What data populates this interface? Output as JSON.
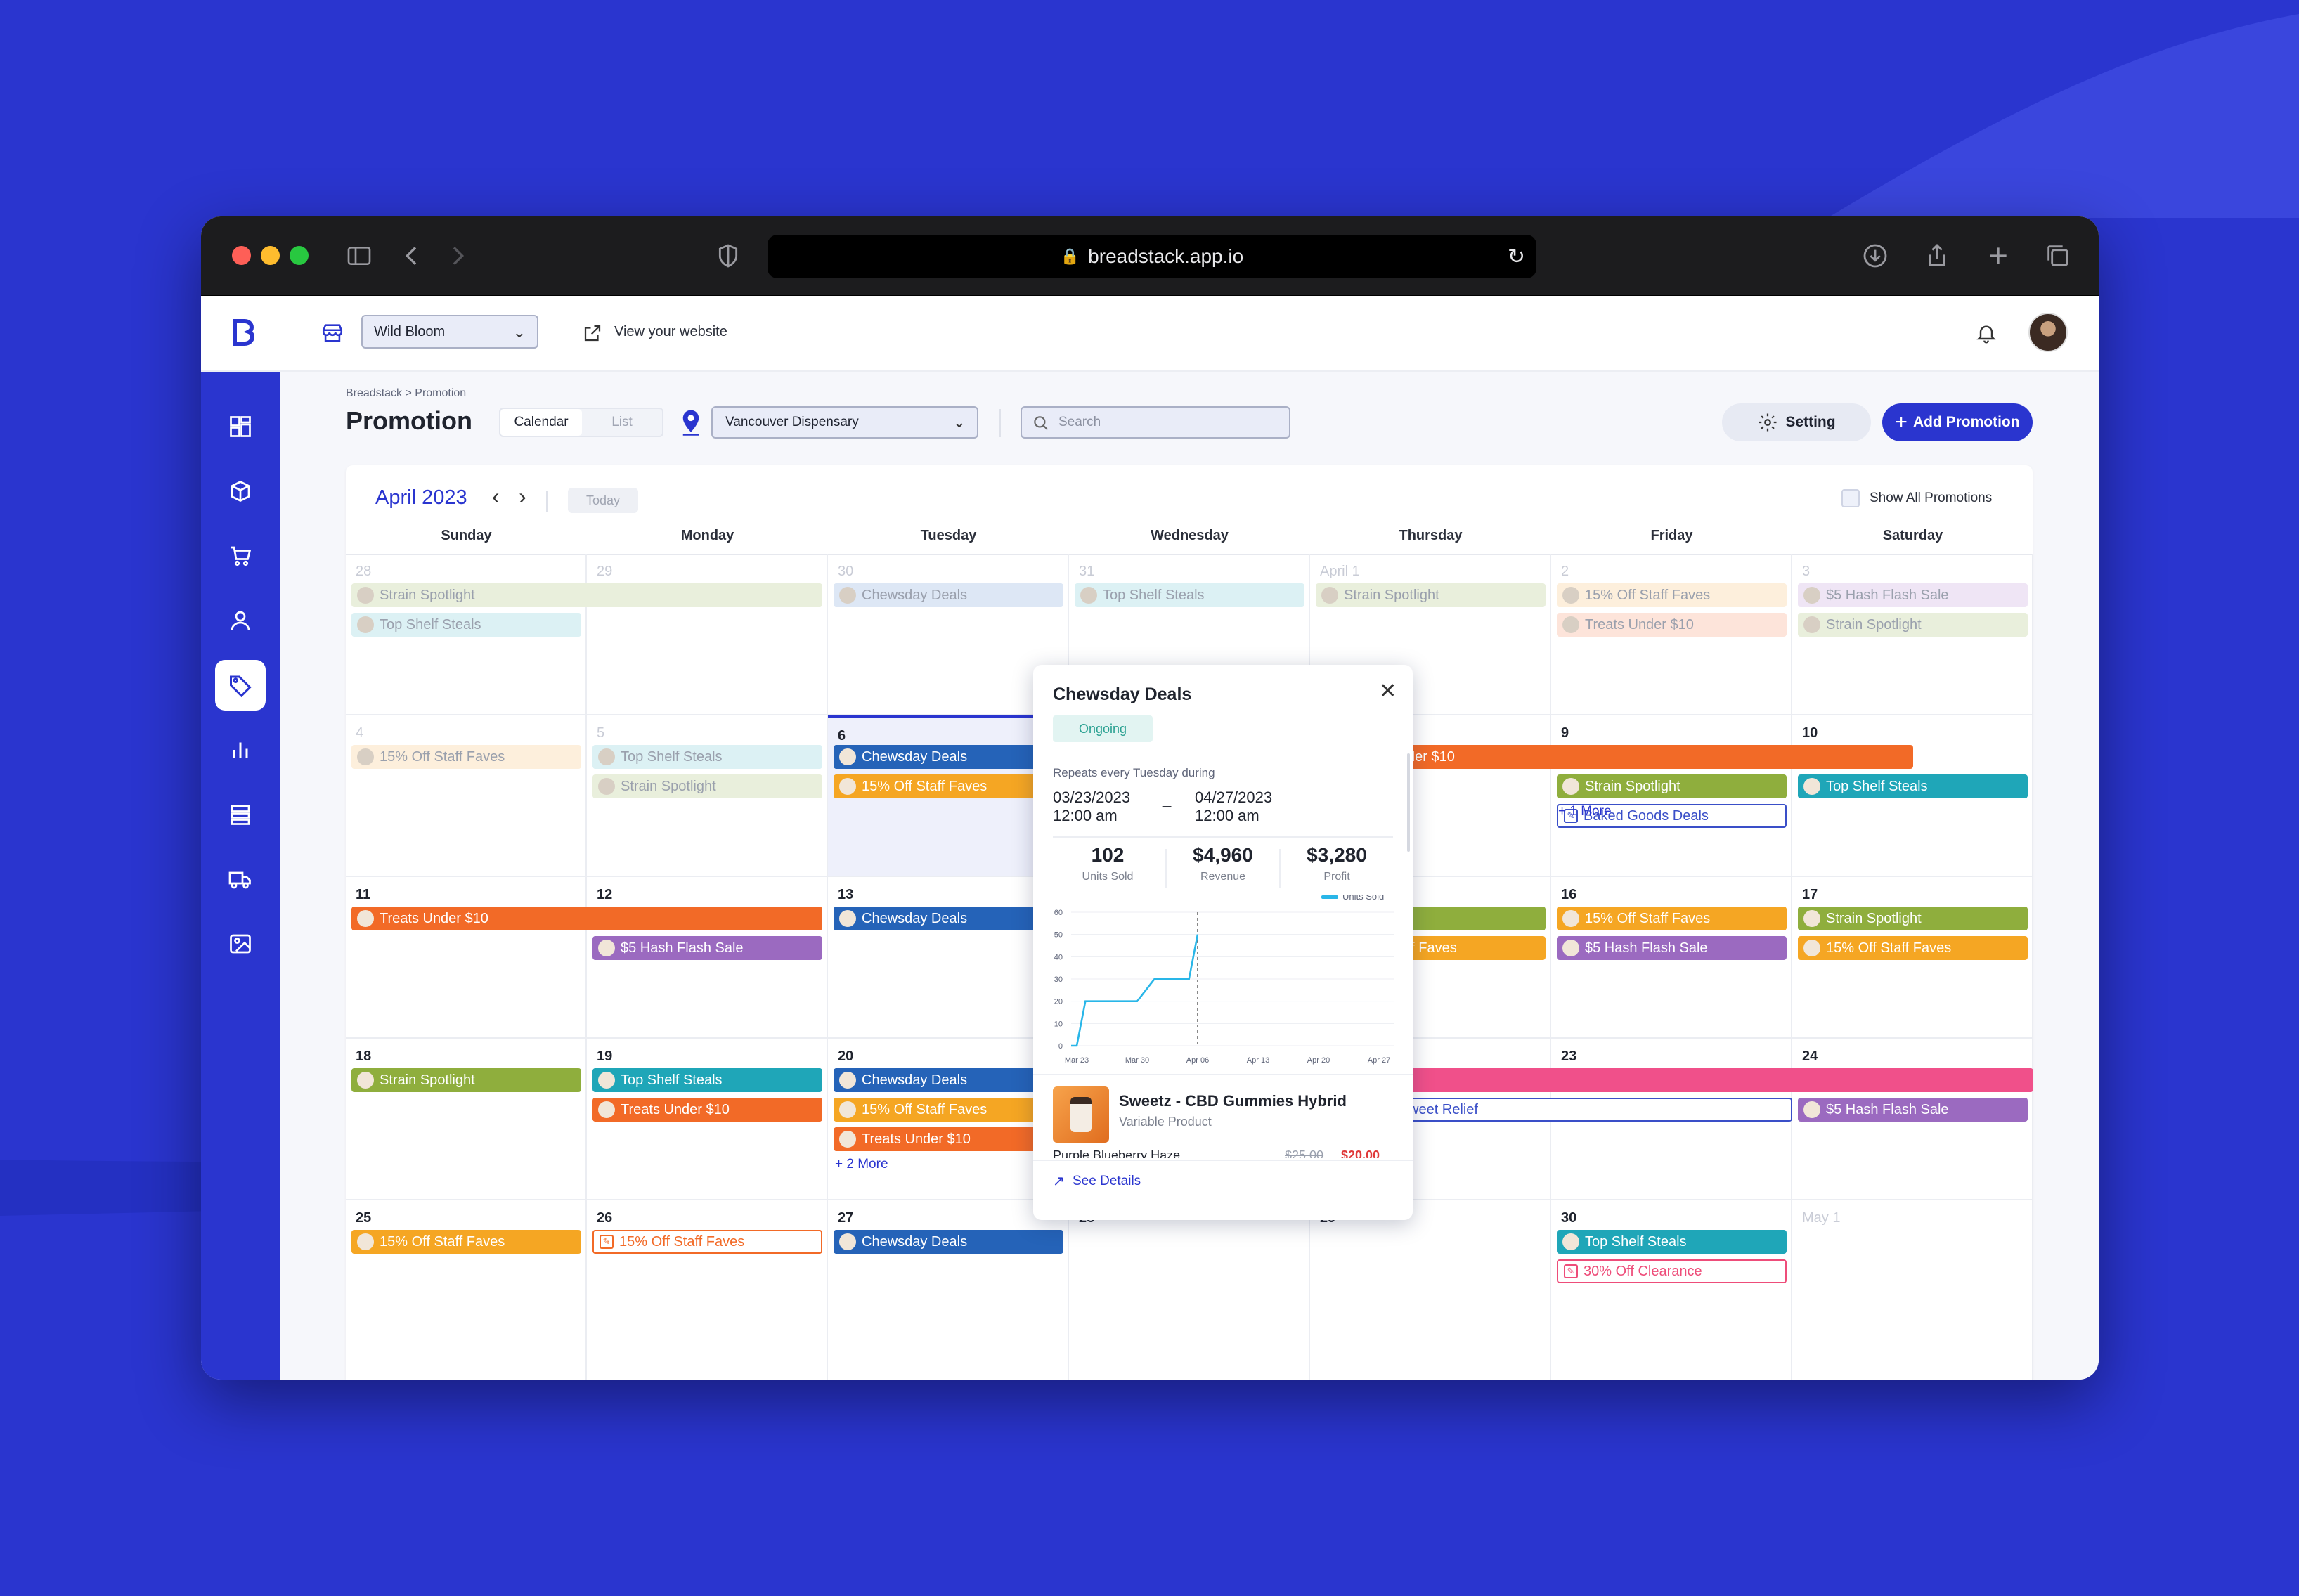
{
  "browser": {
    "url": "breadstack.app.io"
  },
  "header": {
    "store": "Wild Bloom",
    "view_site": "View your website"
  },
  "page": {
    "breadcrumb": "Breadstack > Promotion",
    "title": "Promotion",
    "view_tabs": [
      "Calendar",
      "List"
    ],
    "location": "Vancouver Dispensary",
    "search_placeholder": "Search",
    "setting": "Setting",
    "add_promotion": "Add Promotion"
  },
  "calendar": {
    "month": "April 2023",
    "today": "Today",
    "show_all": "Show All Promotions",
    "weekdays": [
      "Sunday",
      "Monday",
      "Tuesday",
      "Wednesday",
      "Thursday",
      "Friday",
      "Saturday"
    ],
    "days": [
      [
        "28",
        "29",
        "30",
        "31",
        "April 1",
        "2",
        "3"
      ],
      [
        "4",
        "5",
        "6",
        "",
        "",
        "9",
        "10"
      ],
      [
        "11",
        "12",
        "13",
        "",
        "",
        "16",
        "17"
      ],
      [
        "18",
        "19",
        "20",
        "",
        "",
        "23",
        "24"
      ],
      [
        "25",
        "26",
        "27",
        "28",
        "29",
        "30",
        "May 1"
      ]
    ],
    "events": {
      "strain": "Strain Spotlight",
      "topshelf": "Top Shelf Steals",
      "chewsday": "Chewsday Deals",
      "staff": "15% Off Staff Faves",
      "treats": "Treats Under $10",
      "hash": "$5 Hash Flash Sale",
      "baked": "Baked Goods Deals",
      "treats_partial": "der $10",
      "faves_partial": "ff Faves",
      "relief_partial": "weet Relief",
      "clearance": "30% Off Clearance"
    },
    "more_1": "+ 1 More",
    "more_2": "+ 2 More"
  },
  "popup": {
    "title": "Chewsday Deals",
    "status": "Ongoing",
    "repeat": "Repeats every Tuesday during",
    "start_date": "03/23/2023",
    "start_time": "12:00 am",
    "sep": "_",
    "end_date": "04/27/2023",
    "end_time": "12:00 am",
    "stats": [
      {
        "value": "102",
        "label": "Units Sold"
      },
      {
        "value": "$4,960",
        "label": "Revenue"
      },
      {
        "value": "$3,280",
        "label": "Profit"
      }
    ],
    "product": {
      "name": "Sweetz - CBD Gummies Hybrid",
      "type": "Variable Product",
      "variant": "Purple Blueberry Haze",
      "old_price": "$25.00",
      "new_price": "$20.00"
    },
    "see_details": "See Details"
  },
  "chart_data": {
    "type": "line",
    "legend": "Units Sold",
    "legend_position": "top-right",
    "x": [
      "Mar 23",
      "Mar 24",
      "Mar 25",
      "Mar 30",
      "Apr 01",
      "Apr 05",
      "Apr 06"
    ],
    "values": [
      0,
      20,
      20,
      20,
      30,
      30,
      50
    ],
    "series": [
      {
        "name": "Units Sold",
        "values": [
          0,
          20,
          20,
          20,
          30,
          30,
          50
        ]
      }
    ],
    "x_ticks": [
      "Mar 23",
      "Mar 30",
      "Apr 06",
      "Apr 13",
      "Apr 20",
      "Apr 27"
    ],
    "y_ticks": [
      "0",
      "10",
      "20",
      "30",
      "40",
      "50",
      "60"
    ],
    "ylim": [
      0,
      60
    ],
    "marker": "Apr 06",
    "grid": true,
    "color": "#29b6e8"
  }
}
